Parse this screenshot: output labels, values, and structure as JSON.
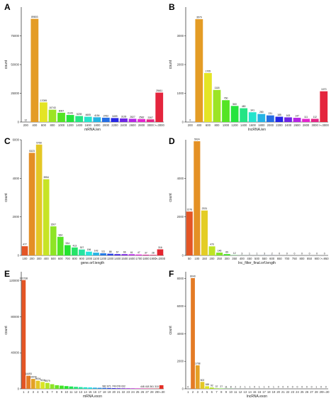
{
  "figure": {
    "panels": [
      {
        "letter": "A",
        "ylabel": "count",
        "xlabel": "mRNA.len",
        "ylim": [
          0,
          100000
        ],
        "yticks": [
          0,
          25000,
          50000,
          75000
        ],
        "categories": [
          "200",
          "400",
          "600",
          "800",
          "1000",
          "1200",
          "1400",
          "1600",
          "1800",
          "2000",
          "2200",
          "2400",
          "2600",
          "2800",
          "3000",
          ">=3000"
        ],
        "values": [
          12,
          89803,
          17099,
          10743,
          8067,
          6143,
          5239,
          4605,
          4154,
          3762,
          3459,
          3128,
          2827,
          2582,
          2307,
          25611
        ],
        "labels": [
          "12",
          "89803",
          "17099",
          "10743",
          "8067",
          "6143",
          "5239",
          "4605",
          "4154",
          "3762",
          "3459",
          "3128",
          "2827",
          "2582",
          "2307",
          "25611"
        ]
      },
      {
        "letter": "B",
        "ylabel": "count",
        "xlabel": "lncRNA.len",
        "ylim": [
          0,
          4000
        ],
        "yticks": [
          0,
          1000,
          2000,
          3000
        ],
        "categories": [
          "200",
          "400",
          "600",
          "800",
          "1000",
          "1200",
          "1400",
          "1600",
          "1800",
          "2000",
          "2200",
          "2400",
          "2600",
          "2800",
          "3000",
          ">=3000"
        ],
        "values": [
          0,
          3579,
          1705,
          1118,
          760,
          560,
          480,
          341,
          280,
          231,
          185,
          163,
          147,
          111,
          112,
          1070
        ],
        "labels": [
          "0",
          "3579",
          "1705",
          "1118",
          "760",
          "560",
          "480",
          "341",
          "280",
          "231",
          "185",
          "163",
          "147",
          "111",
          "112",
          "1070"
        ]
      },
      {
        "letter": "C",
        "ylabel": "count",
        "xlabel": "gene.orf.length",
        "ylim": [
          0,
          6000
        ],
        "yticks": [
          0,
          2000,
          4000,
          6000
        ],
        "categories": [
          "100",
          "200",
          "300",
          "400",
          "500",
          "600",
          "700",
          "800",
          "900",
          "1000",
          "1100",
          "1200",
          "1300",
          "1400",
          "1500",
          "1600",
          "1700",
          "1800",
          "1900",
          ">=2000"
        ],
        "values": [
          477,
          5323,
          5750,
          3954,
          1507,
          964,
          534,
          413,
          307,
          196,
          143,
          111,
          88,
          67,
          66,
          61,
          47,
          37,
          28,
          316
        ],
        "labels": [
          "477",
          "5323",
          "5750",
          "3954",
          "1507",
          "964",
          "534",
          "413",
          "307",
          "196",
          "143",
          "111",
          "88",
          "67",
          "66",
          "61",
          "47",
          "37",
          "28",
          "316"
        ]
      },
      {
        "letter": "D",
        "ylabel": "count",
        "xlabel": "lnc_filter_final.orf.length",
        "ylim": [
          0,
          6000
        ],
        "yticks": [
          0,
          2000,
          4000
        ],
        "categories": [
          "50",
          "100",
          "150",
          "200",
          "250",
          "300",
          "350",
          "400",
          "450",
          "500",
          "550",
          "600",
          "650",
          "700",
          "750",
          "800",
          "850",
          "900",
          ">=950"
        ],
        "values": [
          2276,
          5924,
          2331,
          470,
          146,
          69,
          12,
          3,
          1,
          1,
          3,
          2,
          0,
          0,
          0,
          0,
          0,
          0,
          0
        ],
        "labels": [
          "2276",
          "5924",
          "2331",
          "470",
          "146",
          "69",
          "12",
          "3",
          "1",
          "1",
          "3",
          "2",
          "0",
          "0",
          "0",
          "0",
          "0",
          "0",
          "0"
        ]
      },
      {
        "letter": "E",
        "ylabel": "count",
        "xlabel": "mRNA.exon",
        "ylim": [
          0,
          130000
        ],
        "yticks": [
          0,
          40000,
          80000,
          120000
        ],
        "categories": [
          "1",
          "2",
          "3",
          "4",
          "5",
          "6",
          "7",
          "8",
          "9",
          "10",
          "11",
          "12",
          "13",
          "14",
          "15",
          "16",
          "17",
          "18",
          "19",
          "20",
          "21",
          "22",
          "23",
          "24",
          "25",
          "26",
          "27",
          "28",
          "29",
          ">=30"
        ],
        "values": [
          120738,
          14493,
          10978,
          9004,
          7616,
          6579,
          5105,
          4000,
          3500,
          3000,
          2600,
          2200,
          1900,
          1700,
          1500,
          1300,
          1100,
          982,
          871,
          749,
          678,
          632,
          600,
          568,
          500,
          448,
          418,
          361,
          310,
          4000
        ],
        "labels": [
          "120738",
          "14493",
          "10978",
          "9004",
          "7616",
          "6579",
          "",
          "",
          "",
          "",
          "",
          "",
          "",
          "",
          "",
          "",
          "",
          "982",
          "871",
          "749",
          "678",
          "632",
          "",
          "",
          "",
          "448",
          "418",
          "361",
          "310",
          ""
        ]
      },
      {
        "letter": "F",
        "ylabel": "count",
        "xlabel": "lncRNA.exon",
        "ylim": [
          0,
          8500
        ],
        "yticks": [
          0,
          2000,
          4000,
          6000,
          8000
        ],
        "categories": [
          "1",
          "2",
          "3",
          "4",
          "5",
          "6",
          "7",
          "8",
          "9",
          "10",
          "11",
          "12",
          "13",
          "14",
          "15",
          "16",
          "17",
          "18",
          "19",
          "20",
          "21",
          "22",
          "23",
          "24",
          "25",
          "26",
          "27",
          "28",
          "29",
          ">=30"
        ],
        "values": [
          0,
          8040,
          1708,
          502,
          188,
          92,
          37,
          27,
          11,
          8,
          2,
          2,
          1,
          1,
          0,
          1,
          1,
          0,
          1,
          0,
          0,
          0,
          0,
          0,
          0,
          0,
          0,
          1,
          0,
          0
        ],
        "labels": [
          "0",
          "8040",
          "1708",
          "502",
          "188",
          "92",
          "37",
          "27",
          "11",
          "8",
          "2",
          "2",
          "1",
          "1",
          "0",
          "1",
          "1",
          "0",
          "1",
          "0",
          "0",
          "0",
          "0",
          "0",
          "0",
          "0",
          "0",
          "1",
          "0",
          "0"
        ]
      }
    ]
  },
  "chart_data": [
    {
      "type": "bar",
      "title": "",
      "xlabel": "mRNA.len",
      "ylabel": "count",
      "ylim": [
        0,
        100000
      ],
      "grid": false,
      "legend": "none",
      "categories": [
        "200",
        "400",
        "600",
        "800",
        "1000",
        "1200",
        "1400",
        "1600",
        "1800",
        "2000",
        "2200",
        "2400",
        "2600",
        "2800",
        "3000",
        ">=3000"
      ],
      "values": [
        12,
        89803,
        17099,
        10743,
        8067,
        6143,
        5239,
        4605,
        4154,
        3762,
        3459,
        3128,
        2827,
        2582,
        2307,
        25611
      ]
    },
    {
      "type": "bar",
      "title": "",
      "xlabel": "lncRNA.len",
      "ylabel": "count",
      "ylim": [
        0,
        4000
      ],
      "grid": false,
      "legend": "none",
      "categories": [
        "200",
        "400",
        "600",
        "800",
        "1000",
        "1200",
        "1400",
        "1600",
        "1800",
        "2000",
        "2200",
        "2400",
        "2600",
        "2800",
        "3000",
        ">=3000"
      ],
      "values": [
        0,
        3579,
        1705,
        1118,
        760,
        560,
        480,
        341,
        280,
        231,
        185,
        163,
        147,
        111,
        112,
        1070
      ]
    },
    {
      "type": "bar",
      "title": "",
      "xlabel": "gene.orf.length",
      "ylabel": "count",
      "ylim": [
        0,
        6000
      ],
      "grid": false,
      "legend": "none",
      "categories": [
        "100",
        "200",
        "300",
        "400",
        "500",
        "600",
        "700",
        "800",
        "900",
        "1000",
        "1100",
        "1200",
        "1300",
        "1400",
        "1500",
        "1600",
        "1700",
        "1800",
        "1900",
        ">=2000"
      ],
      "values": [
        477,
        5323,
        5750,
        3954,
        1507,
        964,
        534,
        413,
        307,
        196,
        143,
        111,
        88,
        67,
        66,
        61,
        47,
        37,
        28,
        316
      ]
    },
    {
      "type": "bar",
      "title": "",
      "xlabel": "lnc_filter_final.orf.length",
      "ylabel": "count",
      "ylim": [
        0,
        6000
      ],
      "grid": false,
      "legend": "none",
      "categories": [
        "50",
        "100",
        "150",
        "200",
        "250",
        "300",
        "350",
        "400",
        "450",
        "500",
        "550",
        "600",
        "650",
        "700",
        "750",
        "800",
        "850",
        "900",
        ">=950"
      ],
      "values": [
        2276,
        5924,
        2331,
        470,
        146,
        69,
        12,
        3,
        1,
        1,
        3,
        2,
        0,
        0,
        0,
        0,
        0,
        0,
        0
      ]
    },
    {
      "type": "bar",
      "title": "",
      "xlabel": "mRNA.exon",
      "ylabel": "count",
      "ylim": [
        0,
        130000
      ],
      "grid": false,
      "legend": "none",
      "categories": [
        "1",
        "2",
        "3",
        "4",
        "5",
        "6",
        "7",
        "8",
        "9",
        "10",
        "11",
        "12",
        "13",
        "14",
        "15",
        "16",
        "17",
        "18",
        "19",
        "20",
        "21",
        "22",
        "23",
        "24",
        "25",
        "26",
        "27",
        "28",
        "29",
        ">=30"
      ],
      "values": [
        120738,
        14493,
        10978,
        9004,
        7616,
        6579,
        5105,
        4000,
        3500,
        3000,
        2600,
        2200,
        1900,
        1700,
        1500,
        1300,
        1100,
        982,
        871,
        749,
        678,
        632,
        600,
        568,
        500,
        448,
        418,
        361,
        310,
        4000
      ]
    },
    {
      "type": "bar",
      "title": "",
      "xlabel": "lncRNA.exon",
      "ylabel": "count",
      "ylim": [
        0,
        8500
      ],
      "grid": false,
      "legend": "none",
      "categories": [
        "1",
        "2",
        "3",
        "4",
        "5",
        "6",
        "7",
        "8",
        "9",
        "10",
        "11",
        "12",
        "13",
        "14",
        "15",
        "16",
        "17",
        "18",
        "19",
        "20",
        "21",
        "22",
        "23",
        "24",
        "25",
        "26",
        "27",
        "28",
        "29",
        ">=30"
      ],
      "values": [
        0,
        8040,
        1708,
        502,
        188,
        92,
        37,
        27,
        11,
        8,
        2,
        2,
        1,
        1,
        0,
        1,
        1,
        0,
        1,
        0,
        0,
        0,
        0,
        0,
        0,
        0,
        0,
        1,
        0,
        0
      ]
    }
  ]
}
